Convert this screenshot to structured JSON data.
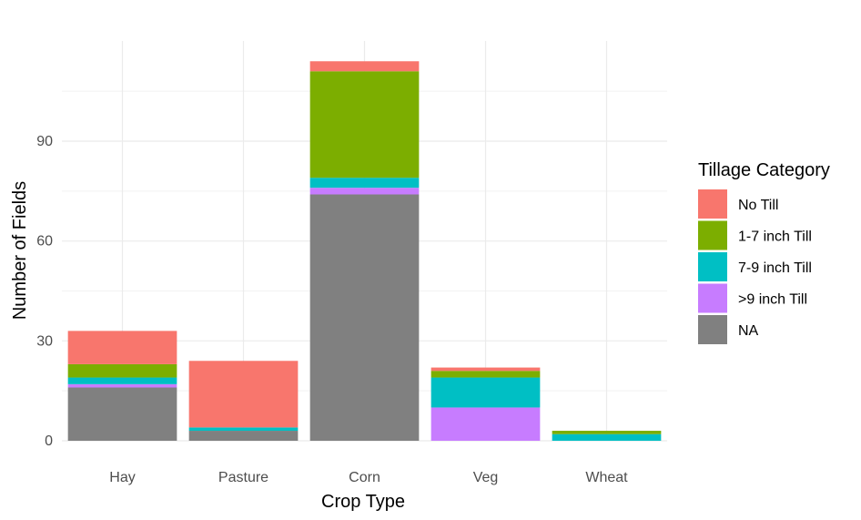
{
  "chart_data": {
    "type": "bar",
    "stacked": true,
    "xlabel": "Crop Type",
    "ylabel": "Number of Fields",
    "categories": [
      "Hay",
      "Pasture",
      "Corn",
      "Veg",
      "Wheat"
    ],
    "yticks": [
      0,
      30,
      60,
      90
    ],
    "ylim": [
      0,
      120
    ],
    "grid": true,
    "legend": {
      "title": "Tillage Category",
      "placement": "right"
    },
    "series": [
      {
        "name": "NA",
        "color": "#808080",
        "values": [
          16,
          3,
          74,
          0,
          0
        ]
      },
      {
        "name": ">9 inch Till",
        "color": "#C77CFF",
        "values": [
          1,
          0,
          2,
          10,
          0
        ]
      },
      {
        "name": "7-9 inch Till",
        "color": "#00BFC4",
        "values": [
          2,
          1,
          3,
          9,
          2
        ]
      },
      {
        "name": "1-7 inch Till",
        "color": "#7CAE00",
        "values": [
          4,
          0,
          32,
          2,
          1
        ]
      },
      {
        "name": "No Till",
        "color": "#F8766D",
        "values": [
          10,
          20,
          3,
          1,
          0
        ]
      }
    ],
    "legend_order": [
      "No Till",
      "1-7 inch Till",
      "7-9 inch Till",
      ">9 inch Till",
      "NA"
    ]
  }
}
